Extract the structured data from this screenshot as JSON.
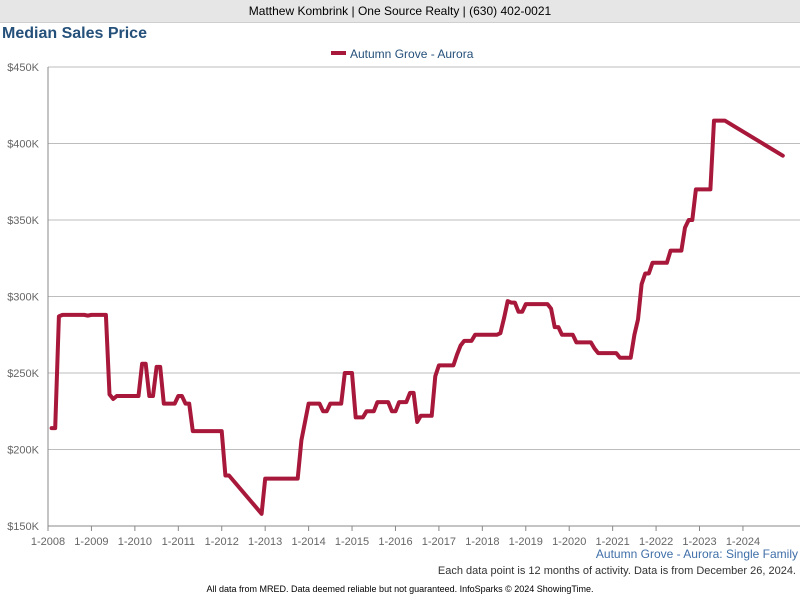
{
  "header": {
    "text": "Matthew Kombrink | One Source Realty | (630) 402-0021"
  },
  "chart_data": {
    "type": "line",
    "title": "Median Sales Price",
    "subtitle": "Autumn Grove - Aurora: Single Family",
    "note": "Each data point is 12 months of activity. Data is from December 26, 2024.",
    "footer": "All data from MRED. Data deemed reliable but not guaranteed. InfoSparks © 2024 ShowingTime.",
    "series": [
      {
        "name": "Autumn Grove - Aurora",
        "color": "#a8183a",
        "points": [
          [
            "2008-02",
            214000
          ],
          [
            "2008-03",
            214000
          ],
          [
            "2008-04",
            287000
          ],
          [
            "2008-05",
            288000
          ],
          [
            "2008-06",
            288000
          ],
          [
            "2008-07",
            288000
          ],
          [
            "2008-08",
            288000
          ],
          [
            "2008-09",
            288000
          ],
          [
            "2008-10",
            288000
          ],
          [
            "2008-11",
            288000
          ],
          [
            "2008-12",
            287500
          ],
          [
            "2009-01",
            288000
          ],
          [
            "2009-02",
            288000
          ],
          [
            "2009-03",
            288000
          ],
          [
            "2009-04",
            288000
          ],
          [
            "2009-05",
            288000
          ],
          [
            "2009-06",
            236000
          ],
          [
            "2009-07",
            233000
          ],
          [
            "2009-08",
            235000
          ],
          [
            "2009-09",
            235000
          ],
          [
            "2009-10",
            235000
          ],
          [
            "2009-11",
            235000
          ],
          [
            "2009-12",
            235000
          ],
          [
            "2010-01",
            235000
          ],
          [
            "2010-02",
            235000
          ],
          [
            "2010-03",
            256000
          ],
          [
            "2010-04",
            256000
          ],
          [
            "2010-05",
            235000
          ],
          [
            "2010-06",
            235000
          ],
          [
            "2010-07",
            254000
          ],
          [
            "2010-08",
            254000
          ],
          [
            "2010-09",
            230000
          ],
          [
            "2010-10",
            230000
          ],
          [
            "2010-11",
            230000
          ],
          [
            "2010-12",
            230000
          ],
          [
            "2011-01",
            235000
          ],
          [
            "2011-02",
            235000
          ],
          [
            "2011-03",
            230000
          ],
          [
            "2011-04",
            230000
          ],
          [
            "2011-05",
            212000
          ],
          [
            "2011-06",
            212000
          ],
          [
            "2011-07",
            212000
          ],
          [
            "2011-08",
            212000
          ],
          [
            "2011-09",
            212000
          ],
          [
            "2011-10",
            212000
          ],
          [
            "2011-11",
            212000
          ],
          [
            "2011-12",
            212000
          ],
          [
            "2012-01",
            212000
          ],
          [
            "2012-02",
            183000
          ],
          [
            "2012-03",
            183000
          ],
          [
            "2012-12",
            158000
          ],
          [
            "2013-01",
            181000
          ],
          [
            "2013-02",
            181000
          ],
          [
            "2013-03",
            181000
          ],
          [
            "2013-04",
            181000
          ],
          [
            "2013-05",
            181000
          ],
          [
            "2013-06",
            181000
          ],
          [
            "2013-07",
            181000
          ],
          [
            "2013-08",
            181000
          ],
          [
            "2013-09",
            181000
          ],
          [
            "2013-10",
            181000
          ],
          [
            "2013-11",
            206000
          ],
          [
            "2013-12",
            218000
          ],
          [
            "2014-01",
            230000
          ],
          [
            "2014-02",
            230000
          ],
          [
            "2014-03",
            230000
          ],
          [
            "2014-04",
            230000
          ],
          [
            "2014-05",
            225000
          ],
          [
            "2014-06",
            225000
          ],
          [
            "2014-07",
            230000
          ],
          [
            "2014-08",
            230000
          ],
          [
            "2014-09",
            230000
          ],
          [
            "2014-10",
            230000
          ],
          [
            "2014-11",
            250000
          ],
          [
            "2014-12",
            250000
          ],
          [
            "2015-01",
            250000
          ],
          [
            "2015-02",
            221000
          ],
          [
            "2015-03",
            221000
          ],
          [
            "2015-04",
            221000
          ],
          [
            "2015-05",
            225000
          ],
          [
            "2015-06",
            225000
          ],
          [
            "2015-07",
            225000
          ],
          [
            "2015-08",
            231000
          ],
          [
            "2015-09",
            231000
          ],
          [
            "2015-10",
            231000
          ],
          [
            "2015-11",
            231000
          ],
          [
            "2015-12",
            225000
          ],
          [
            "2016-01",
            225000
          ],
          [
            "2016-02",
            231000
          ],
          [
            "2016-03",
            231000
          ],
          [
            "2016-04",
            231000
          ],
          [
            "2016-05",
            237000
          ],
          [
            "2016-06",
            237000
          ],
          [
            "2016-07",
            218000
          ],
          [
            "2016-08",
            222000
          ],
          [
            "2016-09",
            222000
          ],
          [
            "2016-10",
            222000
          ],
          [
            "2016-11",
            222000
          ],
          [
            "2016-12",
            248000
          ],
          [
            "2017-01",
            255000
          ],
          [
            "2017-02",
            255000
          ],
          [
            "2017-03",
            255000
          ],
          [
            "2017-04",
            255000
          ],
          [
            "2017-05",
            255000
          ],
          [
            "2017-06",
            262000
          ],
          [
            "2017-07",
            268000
          ],
          [
            "2017-08",
            271000
          ],
          [
            "2017-09",
            271000
          ],
          [
            "2017-10",
            271000
          ],
          [
            "2017-11",
            275000
          ],
          [
            "2017-12",
            275000
          ],
          [
            "2018-01",
            275000
          ],
          [
            "2018-02",
            275000
          ],
          [
            "2018-03",
            275000
          ],
          [
            "2018-04",
            275000
          ],
          [
            "2018-05",
            275000
          ],
          [
            "2018-06",
            276000
          ],
          [
            "2018-07",
            286000
          ],
          [
            "2018-08",
            297000
          ],
          [
            "2018-09",
            296000
          ],
          [
            "2018-10",
            296000
          ],
          [
            "2018-11",
            290000
          ],
          [
            "2018-12",
            290000
          ],
          [
            "2019-01",
            295000
          ],
          [
            "2019-02",
            295000
          ],
          [
            "2019-03",
            295000
          ],
          [
            "2019-04",
            295000
          ],
          [
            "2019-05",
            295000
          ],
          [
            "2019-06",
            295000
          ],
          [
            "2019-07",
            295000
          ],
          [
            "2019-08",
            292000
          ],
          [
            "2019-09",
            280000
          ],
          [
            "2019-10",
            280000
          ],
          [
            "2019-11",
            275000
          ],
          [
            "2019-12",
            275000
          ],
          [
            "2020-01",
            275000
          ],
          [
            "2020-02",
            275000
          ],
          [
            "2020-03",
            270000
          ],
          [
            "2020-04",
            270000
          ],
          [
            "2020-05",
            270000
          ],
          [
            "2020-06",
            270000
          ],
          [
            "2020-07",
            270000
          ],
          [
            "2020-08",
            266000
          ],
          [
            "2020-09",
            263000
          ],
          [
            "2020-10",
            263000
          ],
          [
            "2020-11",
            263000
          ],
          [
            "2020-12",
            263000
          ],
          [
            "2021-01",
            263000
          ],
          [
            "2021-02",
            263000
          ],
          [
            "2021-03",
            260000
          ],
          [
            "2021-04",
            260000
          ],
          [
            "2021-05",
            260000
          ],
          [
            "2021-06",
            260000
          ],
          [
            "2021-07",
            275000
          ],
          [
            "2021-08",
            285000
          ],
          [
            "2021-09",
            308000
          ],
          [
            "2021-10",
            315000
          ],
          [
            "2021-11",
            315000
          ],
          [
            "2021-12",
            322000
          ],
          [
            "2022-01",
            322000
          ],
          [
            "2022-02",
            322000
          ],
          [
            "2022-03",
            322000
          ],
          [
            "2022-04",
            322000
          ],
          [
            "2022-05",
            330000
          ],
          [
            "2022-06",
            330000
          ],
          [
            "2022-07",
            330000
          ],
          [
            "2022-08",
            330000
          ],
          [
            "2022-09",
            345000
          ],
          [
            "2022-10",
            350000
          ],
          [
            "2022-11",
            350000
          ],
          [
            "2022-12",
            370000
          ],
          [
            "2023-01",
            370000
          ],
          [
            "2023-02",
            370000
          ],
          [
            "2023-03",
            370000
          ],
          [
            "2023-04",
            370000
          ],
          [
            "2023-05",
            415000
          ],
          [
            "2023-06",
            415000
          ],
          [
            "2023-07",
            415000
          ],
          [
            "2023-08",
            415000
          ],
          [
            "2024-12",
            392000
          ]
        ]
      }
    ],
    "y_axis": {
      "min": 150000,
      "max": 450000,
      "ticks": [
        {
          "value": 150000,
          "label": "$150K"
        },
        {
          "value": 200000,
          "label": "$200K"
        },
        {
          "value": 250000,
          "label": "$250K"
        },
        {
          "value": 300000,
          "label": "$300K"
        },
        {
          "value": 350000,
          "label": "$350K"
        },
        {
          "value": 400000,
          "label": "$400K"
        },
        {
          "value": 450000,
          "label": "$450K"
        }
      ]
    },
    "x_axis": {
      "min": "2008-01",
      "max": "2025-02",
      "ticks": [
        {
          "value": "2008-01",
          "label": "1-2008"
        },
        {
          "value": "2009-01",
          "label": "1-2009"
        },
        {
          "value": "2010-01",
          "label": "1-2010"
        },
        {
          "value": "2011-01",
          "label": "1-2011"
        },
        {
          "value": "2012-01",
          "label": "1-2012"
        },
        {
          "value": "2013-01",
          "label": "1-2013"
        },
        {
          "value": "2014-01",
          "label": "1-2014"
        },
        {
          "value": "2015-01",
          "label": "1-2015"
        },
        {
          "value": "2016-01",
          "label": "1-2016"
        },
        {
          "value": "2017-01",
          "label": "1-2017"
        },
        {
          "value": "2018-01",
          "label": "1-2018"
        },
        {
          "value": "2019-01",
          "label": "1-2019"
        },
        {
          "value": "2020-01",
          "label": "1-2020"
        },
        {
          "value": "2021-01",
          "label": "1-2021"
        },
        {
          "value": "2022-01",
          "label": "1-2022"
        },
        {
          "value": "2023-01",
          "label": "1-2023"
        },
        {
          "value": "2024-01",
          "label": "1-2024"
        }
      ]
    },
    "grid": "horizontal",
    "legend_position": "top-center",
    "colors": {
      "title": "#24507a",
      "grid": "#bdbdbd",
      "series": "#a8183a"
    }
  }
}
